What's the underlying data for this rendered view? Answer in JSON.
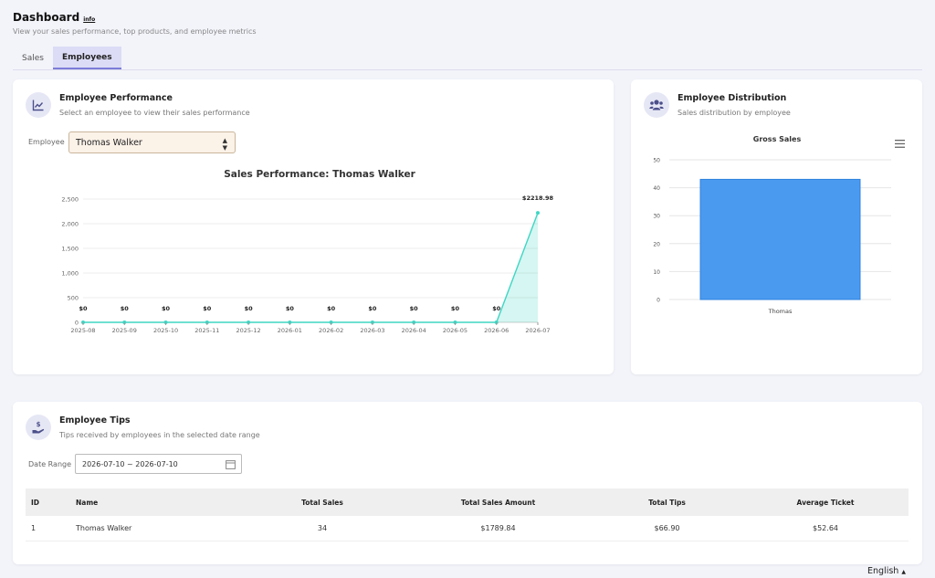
{
  "header": {
    "title": "Dashboard",
    "info_label": "info",
    "subtitle": "View your sales performance, top products, and employee metrics"
  },
  "tabs": [
    {
      "label": "Sales",
      "active": false
    },
    {
      "label": "Employees",
      "active": true
    }
  ],
  "performance": {
    "title": "Employee Performance",
    "subtitle": "Select an employee to view their sales performance",
    "employee_label": "Employee",
    "employee_selected": "Thomas Walker",
    "icon": "chart-line-icon"
  },
  "distribution": {
    "title": "Employee Distribution",
    "subtitle": "Sales distribution by employee",
    "icon": "users-icon"
  },
  "tips": {
    "title": "Employee Tips",
    "subtitle": "Tips received by employees in the selected date range",
    "date_label": "Date Range",
    "date_value": "2026-07-10 ~ 2026-07-10",
    "icon": "hand-dollar-icon",
    "columns": [
      "ID",
      "Name",
      "Total Sales",
      "Total Sales Amount",
      "Total Tips",
      "Average Ticket"
    ],
    "rows": [
      {
        "id": "1",
        "name": "Thomas Walker",
        "total_sales": "34",
        "total_sales_amount": "$1789.84",
        "total_tips": "$66.90",
        "average_ticket": "$52.64"
      }
    ]
  },
  "language": "English",
  "chart_data": [
    {
      "type": "area",
      "title": "Sales Performance: Thomas Walker",
      "x": [
        "2025-08",
        "2025-09",
        "2025-10",
        "2025-11",
        "2025-12",
        "2026-01",
        "2026-02",
        "2026-03",
        "2026-04",
        "2026-05",
        "2026-06",
        "2026-07"
      ],
      "values": [
        0,
        0,
        0,
        0,
        0,
        0,
        0,
        0,
        0,
        0,
        0,
        2218.98
      ],
      "data_labels": [
        "$0",
        "$0",
        "$0",
        "$0",
        "$0",
        "$0",
        "$0",
        "$0",
        "$0",
        "$0",
        "$0",
        "$2218.98"
      ],
      "yticks": [
        0,
        500,
        1000,
        1500,
        2000,
        2500
      ],
      "ytick_labels": [
        "0",
        "500",
        "1,000",
        "1,500",
        "2,000",
        "2,500"
      ],
      "ylim": [
        0,
        2500
      ],
      "color": "#3fd6c4",
      "grid": true
    },
    {
      "type": "bar",
      "title": "Gross Sales",
      "categories": [
        "Thomas"
      ],
      "values": [
        43
      ],
      "yticks": [
        0,
        10,
        20,
        30,
        40,
        50
      ],
      "ylim": [
        0,
        50
      ],
      "color": "#4a9af0",
      "grid": true
    }
  ]
}
